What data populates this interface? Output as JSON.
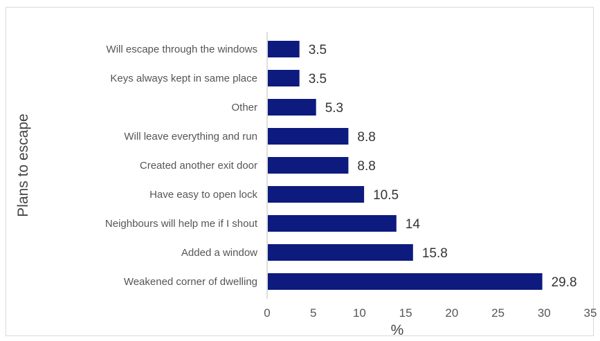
{
  "chart_data": {
    "type": "bar",
    "orientation": "horizontal",
    "categories": [
      "Will escape through the windows",
      "Keys always kept in same place",
      "Other",
      "Will leave everything and run",
      "Created another exit door",
      "Have easy to open lock",
      "Neighbours will help me if I shout",
      "Added a window",
      "Weakened corner of dwelling"
    ],
    "values": [
      3.5,
      3.5,
      5.3,
      8.8,
      8.8,
      10.5,
      14,
      15.8,
      29.8
    ],
    "value_labels": [
      "3.5",
      "3.5",
      "5.3",
      "8.8",
      "8.8",
      "10.5",
      "14",
      "15.8",
      "29.8"
    ],
    "xlabel": "%",
    "ylabel": "Plans to escape",
    "xlim": [
      0,
      35
    ],
    "xticks": [
      "0",
      "5",
      "10",
      "15",
      "20",
      "25",
      "30",
      "35"
    ],
    "grid": false,
    "bar_color": "#0d1a7e"
  }
}
